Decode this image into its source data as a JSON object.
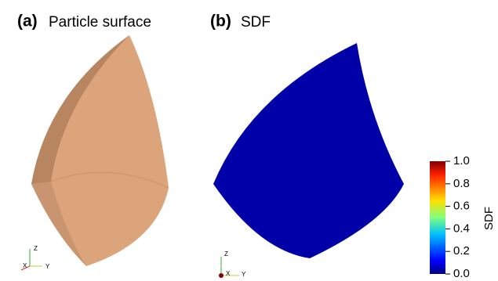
{
  "panels": [
    {
      "letter": "(a)",
      "title": "Particle surface",
      "axes": [
        "Z",
        "X",
        "Y"
      ]
    },
    {
      "letter": "(b)",
      "title": "SDF",
      "axes": [
        "Z",
        "X",
        "Y"
      ]
    }
  ],
  "colorbar": {
    "label": "SDF",
    "range": [
      0,
      1
    ],
    "ticks": [
      {
        "value": 1,
        "label": "1.0"
      },
      0.8,
      0.6,
      0.4,
      0.2,
      {
        "value": 0,
        "label": "0.0"
      }
    ]
  }
}
